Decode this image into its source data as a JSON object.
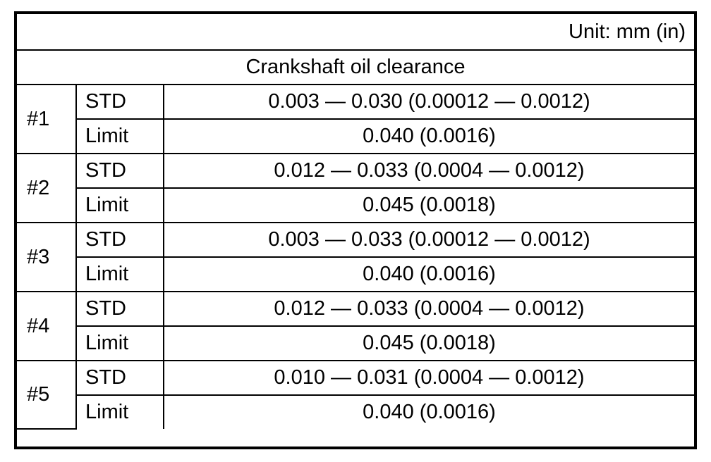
{
  "unit": "Unit: mm (in)",
  "table": {
    "title": "Crankshaft oil clearance",
    "rows": [
      {
        "journal": "#1",
        "std_label": "STD",
        "std": "0.003 — 0.030 (0.00012 — 0.0012)",
        "limit_label": "Limit",
        "limit": "0.040 (0.0016)"
      },
      {
        "journal": "#2",
        "std_label": "STD",
        "std": "0.012 — 0.033 (0.0004 — 0.0012)",
        "limit_label": "Limit",
        "limit": "0.045 (0.0018)"
      },
      {
        "journal": "#3",
        "std_label": "STD",
        "std": "0.003 — 0.033 (0.00012 — 0.0012)",
        "limit_label": "Limit",
        "limit": "0.040 (0.0016)"
      },
      {
        "journal": "#4",
        "std_label": "STD",
        "std": "0.012 — 0.033 (0.0004 — 0.0012)",
        "limit_label": "Limit",
        "limit": "0.045 (0.0018)"
      },
      {
        "journal": "#5",
        "std_label": "STD",
        "std": "0.010 — 0.031 (0.0004 — 0.0012)",
        "limit_label": "Limit",
        "limit": "0.040 (0.0016)"
      }
    ]
  }
}
